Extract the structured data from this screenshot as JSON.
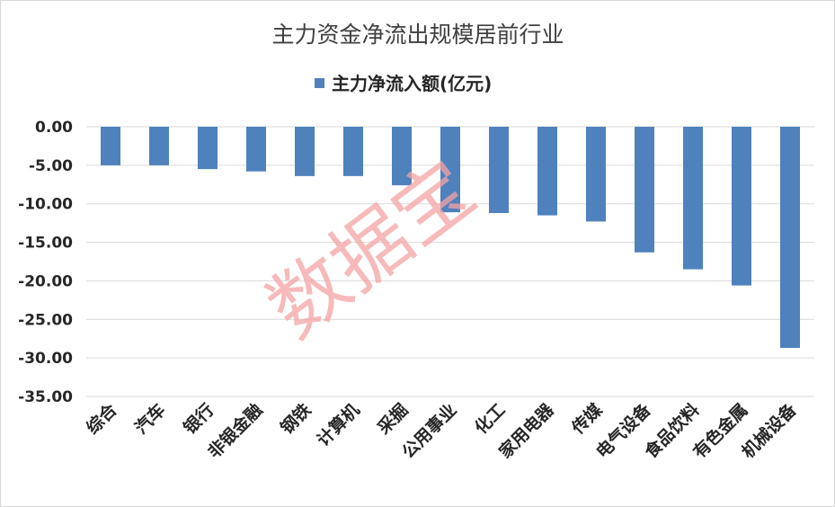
{
  "chart_data": {
    "type": "bar",
    "title": "主力资金净流出规模居前行业",
    "legend": "主力净流入额(亿元)",
    "legend_position": "top",
    "bar_color": "#4F81BD",
    "grid": true,
    "ylim": [
      -35,
      0
    ],
    "yticks": [
      "0.00",
      "-5.00",
      "-10.00",
      "-15.00",
      "-20.00",
      "-25.00",
      "-30.00",
      "-35.00"
    ],
    "categories": [
      "综合",
      "汽车",
      "银行",
      "非银金融",
      "钢铁",
      "计算机",
      "采掘",
      "公用事业",
      "化工",
      "家用电器",
      "传媒",
      "电气设备",
      "食品饮料",
      "有色金属",
      "机械设备"
    ],
    "series": [
      {
        "name": "主力净流入额(亿元)",
        "values": [
          -5.0,
          -5.0,
          -5.5,
          -5.8,
          -6.4,
          -6.4,
          -7.6,
          -11.1,
          -11.2,
          -11.5,
          -12.3,
          -16.3,
          -18.5,
          -20.6,
          -28.7
        ]
      }
    ]
  },
  "watermark": "数据宝"
}
